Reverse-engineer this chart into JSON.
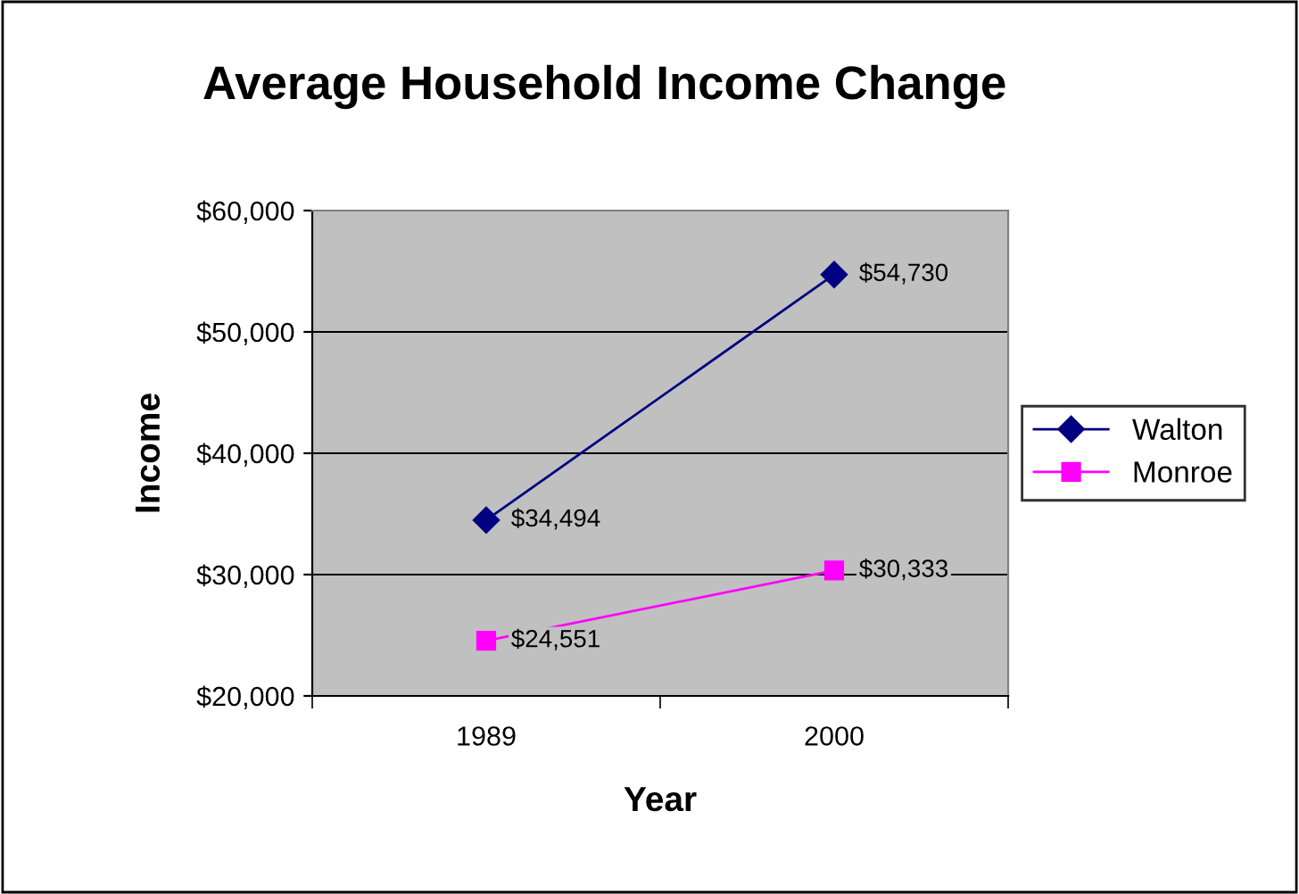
{
  "chart_data": {
    "type": "line",
    "title": "Average Household Income Change",
    "xlabel": "Year",
    "ylabel": "Income",
    "categories": [
      "1989",
      "2000"
    ],
    "series": [
      {
        "name": "Walton",
        "color": "#000080",
        "marker": "diamond",
        "values": [
          34494,
          54730
        ],
        "value_labels": [
          "$34,494",
          "$54,730"
        ]
      },
      {
        "name": "Monroe",
        "color": "#ff00ff",
        "marker": "square",
        "values": [
          24551,
          30333
        ],
        "value_labels": [
          "$24,551",
          "$30,333"
        ]
      }
    ],
    "ylim": [
      20000,
      60000
    ],
    "yticks": [
      {
        "value": 20000,
        "label": "$20,000"
      },
      {
        "value": 30000,
        "label": "$30,000"
      },
      {
        "value": 40000,
        "label": "$40,000"
      },
      {
        "value": 50000,
        "label": "$50,000"
      },
      {
        "value": 60000,
        "label": "$60,000"
      }
    ],
    "grid": "y",
    "legend": "right",
    "line_style": "solid"
  }
}
